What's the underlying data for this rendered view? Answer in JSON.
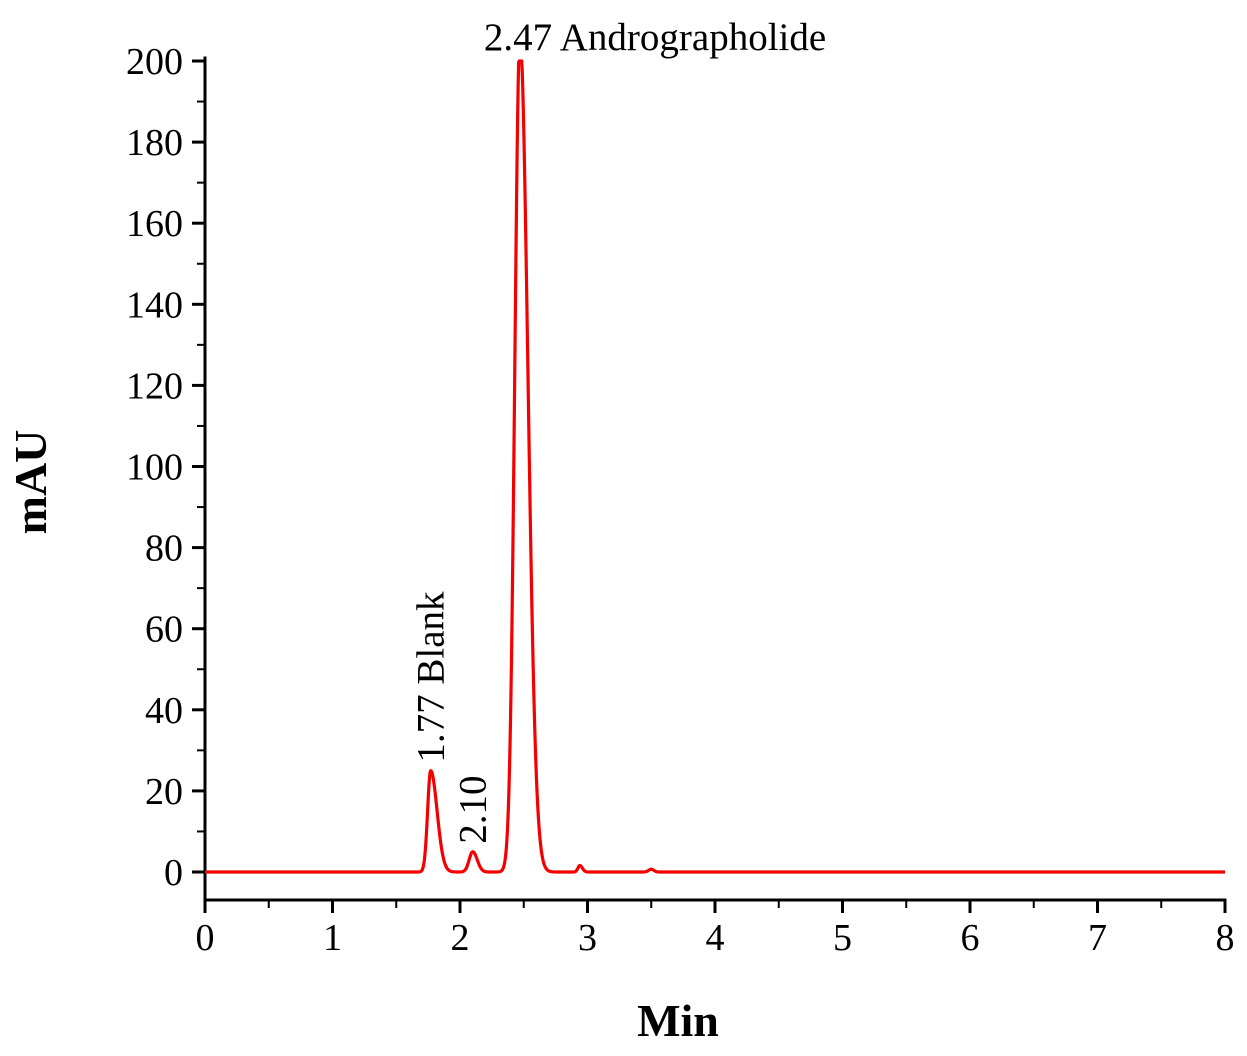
{
  "chart_data": {
    "type": "line",
    "title": "",
    "xlabel": "Min",
    "ylabel": "mAU",
    "xlim": [
      0,
      8
    ],
    "ylim": [
      0,
      200
    ],
    "x_ticks": [
      0,
      1,
      2,
      3,
      4,
      5,
      6,
      7,
      8
    ],
    "y_ticks": [
      0,
      20,
      40,
      60,
      80,
      100,
      120,
      140,
      160,
      180,
      200
    ],
    "x_minor_step": 0.5,
    "y_minor_step": 10,
    "grid": false,
    "legend": null,
    "line_color": "#f40000",
    "axis_color": "#000000",
    "baseline_mau": 0,
    "clip_max_mau": 200,
    "peaks": [
      {
        "rt": 1.77,
        "height_mau": 25,
        "sigma_left": 0.024,
        "sigma_right": 0.05,
        "label": "1.77 Blank",
        "label_orientation": "vertical"
      },
      {
        "rt": 2.1,
        "height_mau": 5,
        "sigma_left": 0.028,
        "sigma_right": 0.035,
        "label": "2.10",
        "label_orientation": "vertical"
      },
      {
        "rt": 2.47,
        "height_mau": 206,
        "sigma_left": 0.04,
        "sigma_right": 0.062,
        "label": "2.47 Andrographolide",
        "label_orientation": "horizontal"
      },
      {
        "rt": 2.94,
        "height_mau": 1.6,
        "sigma_left": 0.015,
        "sigma_right": 0.02,
        "label": null,
        "label_orientation": null
      },
      {
        "rt": 3.5,
        "height_mau": 0.7,
        "sigma_left": 0.02,
        "sigma_right": 0.02,
        "label": null,
        "label_orientation": null
      }
    ]
  }
}
